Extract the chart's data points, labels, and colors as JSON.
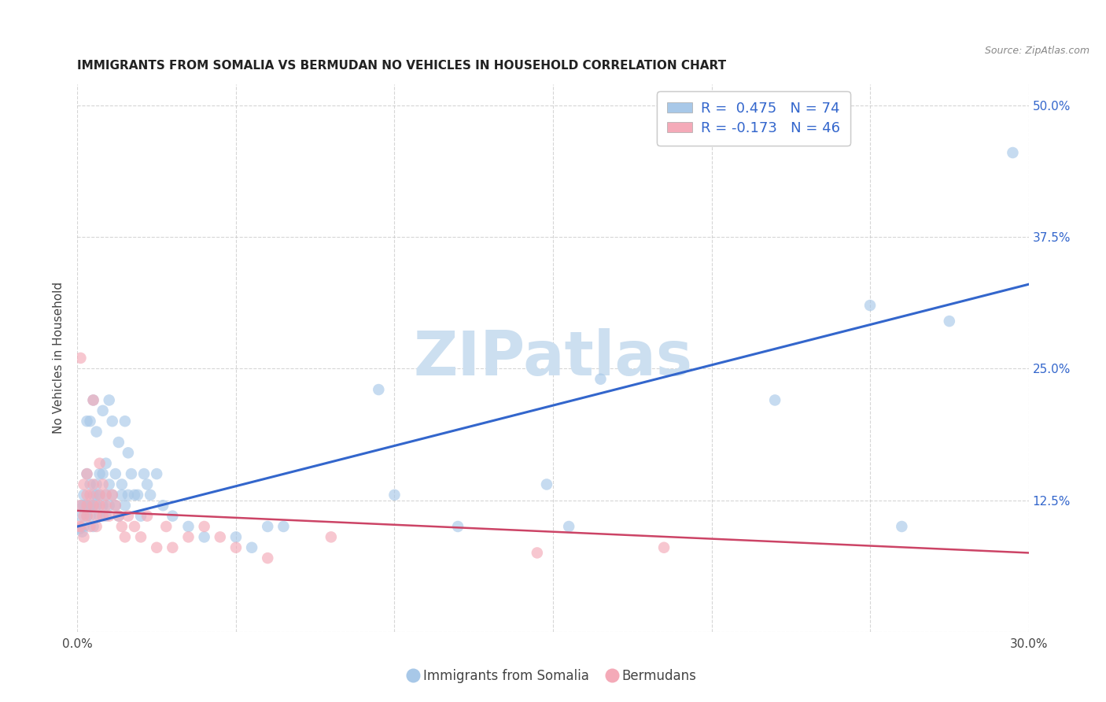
{
  "title": "IMMIGRANTS FROM SOMALIA VS BERMUDAN NO VEHICLES IN HOUSEHOLD CORRELATION CHART",
  "source": "Source: ZipAtlas.com",
  "ylabel": "No Vehicles in Household",
  "legend_blue_label": "R =  0.475   N = 74",
  "legend_pink_label": "R = -0.173   N = 46",
  "legend_bottom_blue": "Immigrants from Somalia",
  "legend_bottom_pink": "Bermudans",
  "blue_color": "#a8c8e8",
  "blue_line_color": "#3366cc",
  "pink_color": "#f4aab8",
  "pink_line_color": "#cc4466",
  "xlim": [
    0.0,
    0.3
  ],
  "ylim": [
    0.0,
    0.52
  ],
  "xticks": [
    0.0,
    0.05,
    0.1,
    0.15,
    0.2,
    0.25,
    0.3
  ],
  "yticks": [
    0.0,
    0.125,
    0.25,
    0.375,
    0.5
  ],
  "ytick_labels": [
    "",
    "12.5%",
    "25.0%",
    "37.5%",
    "50.0%"
  ],
  "xtick_labels_show": [
    "0.0%",
    "",
    "",
    "",
    "",
    "",
    "30.0%"
  ],
  "watermark_text": "ZIPatlas",
  "watermark_color": "#ccdff0",
  "bg_color": "#ffffff",
  "grid_color": "#cccccc",
  "blue_points_x": [
    0.0008,
    0.001,
    0.0012,
    0.0015,
    0.002,
    0.002,
    0.002,
    0.003,
    0.003,
    0.003,
    0.003,
    0.004,
    0.004,
    0.004,
    0.004,
    0.005,
    0.005,
    0.005,
    0.005,
    0.006,
    0.006,
    0.006,
    0.006,
    0.007,
    0.007,
    0.007,
    0.008,
    0.008,
    0.008,
    0.009,
    0.009,
    0.009,
    0.01,
    0.01,
    0.01,
    0.011,
    0.011,
    0.012,
    0.012,
    0.013,
    0.013,
    0.014,
    0.014,
    0.015,
    0.015,
    0.016,
    0.016,
    0.017,
    0.018,
    0.019,
    0.02,
    0.021,
    0.022,
    0.023,
    0.025,
    0.027,
    0.03,
    0.035,
    0.04,
    0.05,
    0.055,
    0.06,
    0.065,
    0.095,
    0.1,
    0.12,
    0.148,
    0.155,
    0.165,
    0.22,
    0.25,
    0.26,
    0.275,
    0.295
  ],
  "blue_points_y": [
    0.098,
    0.11,
    0.12,
    0.095,
    0.13,
    0.12,
    0.1,
    0.15,
    0.12,
    0.11,
    0.2,
    0.14,
    0.12,
    0.2,
    0.11,
    0.13,
    0.12,
    0.1,
    0.22,
    0.14,
    0.13,
    0.12,
    0.19,
    0.15,
    0.13,
    0.11,
    0.21,
    0.15,
    0.12,
    0.16,
    0.13,
    0.11,
    0.14,
    0.22,
    0.12,
    0.2,
    0.13,
    0.15,
    0.12,
    0.18,
    0.11,
    0.14,
    0.13,
    0.2,
    0.12,
    0.17,
    0.13,
    0.15,
    0.13,
    0.13,
    0.11,
    0.15,
    0.14,
    0.13,
    0.15,
    0.12,
    0.11,
    0.1,
    0.09,
    0.09,
    0.08,
    0.1,
    0.1,
    0.23,
    0.13,
    0.1,
    0.14,
    0.1,
    0.24,
    0.22,
    0.31,
    0.1,
    0.295,
    0.455
  ],
  "pink_points_x": [
    0.0005,
    0.001,
    0.001,
    0.001,
    0.002,
    0.002,
    0.002,
    0.003,
    0.003,
    0.003,
    0.003,
    0.004,
    0.004,
    0.005,
    0.005,
    0.005,
    0.006,
    0.006,
    0.007,
    0.007,
    0.007,
    0.008,
    0.008,
    0.009,
    0.009,
    0.01,
    0.011,
    0.012,
    0.013,
    0.014,
    0.015,
    0.016,
    0.018,
    0.02,
    0.022,
    0.025,
    0.028,
    0.03,
    0.035,
    0.04,
    0.045,
    0.05,
    0.06,
    0.08,
    0.145,
    0.185
  ],
  "pink_points_y": [
    0.1,
    0.12,
    0.26,
    0.1,
    0.11,
    0.14,
    0.09,
    0.13,
    0.15,
    0.12,
    0.11,
    0.1,
    0.13,
    0.14,
    0.12,
    0.22,
    0.11,
    0.1,
    0.13,
    0.12,
    0.16,
    0.11,
    0.14,
    0.13,
    0.12,
    0.11,
    0.13,
    0.12,
    0.11,
    0.1,
    0.09,
    0.11,
    0.1,
    0.09,
    0.11,
    0.08,
    0.1,
    0.08,
    0.09,
    0.1,
    0.09,
    0.08,
    0.07,
    0.09,
    0.075,
    0.08
  ]
}
